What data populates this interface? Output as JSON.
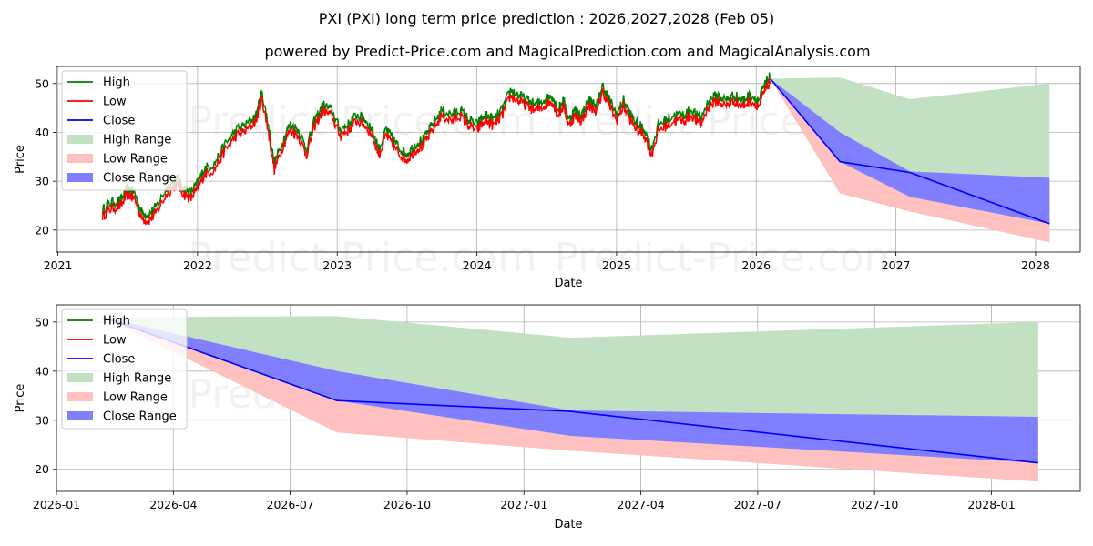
{
  "title": "PXI (PXI) long term price prediction : 2026,2027,2028 (Feb 05)",
  "subtitle": "powered by Predict-Price.com and MagicalPrediction.com and MagicalAnalysis.com",
  "watermark": "Predict-Price.com",
  "colors": {
    "high": "#008000",
    "low": "#ff0000",
    "close": "#0000ff",
    "high_range": "#c2e0c2",
    "low_range": "#ffc0c0",
    "close_range": "#7f7fff"
  },
  "legend": [
    "High",
    "Low",
    "Close",
    "High Range",
    "Low Range",
    "Close Range"
  ],
  "chart_data": [
    {
      "type": "line",
      "title": "PXI (PXI) long term price prediction : 2026,2027,2028 (Feb 05)",
      "xlabel": "Date",
      "ylabel": "Price",
      "xlim": [
        2020.99,
        2028.32
      ],
      "ylim": [
        15.5,
        53.5
      ],
      "xticks": [
        {
          "v": 2021,
          "label": "2021"
        },
        {
          "v": 2022,
          "label": "2022"
        },
        {
          "v": 2023,
          "label": "2023"
        },
        {
          "v": 2024,
          "label": "2024"
        },
        {
          "v": 2025,
          "label": "2025"
        },
        {
          "v": 2026,
          "label": "2026"
        },
        {
          "v": 2027,
          "label": "2027"
        },
        {
          "v": 2028,
          "label": "2028"
        }
      ],
      "yticks": [
        20,
        30,
        40,
        50
      ],
      "history_close": {
        "x": [
          2021.32,
          2021.38,
          2021.45,
          2021.5,
          2021.55,
          2021.6,
          2021.65,
          2021.7,
          2021.78,
          2021.85,
          2021.9,
          2021.95,
          2022.0,
          2022.05,
          2022.12,
          2022.2,
          2022.28,
          2022.35,
          2022.42,
          2022.46,
          2022.5,
          2022.55,
          2022.6,
          2022.66,
          2022.72,
          2022.78,
          2022.84,
          2022.9,
          2022.96,
          2023.02,
          2023.08,
          2023.14,
          2023.2,
          2023.25,
          2023.3,
          2023.35,
          2023.4,
          2023.45,
          2023.5,
          2023.56,
          2023.62,
          2023.68,
          2023.75,
          2023.82,
          2023.88,
          2023.94,
          2024.0,
          2024.06,
          2024.12,
          2024.18,
          2024.24,
          2024.3,
          2024.36,
          2024.42,
          2024.48,
          2024.54,
          2024.58,
          2024.62,
          2024.66,
          2024.7,
          2024.75,
          2024.8,
          2024.86,
          2024.9,
          2024.95,
          2025.0,
          2025.05,
          2025.1,
          2025.15,
          2025.2,
          2025.25,
          2025.3,
          2025.36,
          2025.42,
          2025.48,
          2025.54,
          2025.6,
          2025.66,
          2025.72,
          2025.78,
          2025.84,
          2025.9,
          2025.96,
          2026.02,
          2026.06,
          2026.1
        ],
        "y": [
          23.5,
          25,
          25.5,
          28,
          27,
          23,
          22.5,
          24,
          28,
          30,
          28,
          27,
          29,
          32,
          33,
          37,
          40,
          41,
          43,
          47.5,
          42,
          33,
          37,
          41,
          40,
          36,
          42,
          45,
          44,
          40,
          41,
          43,
          42,
          40,
          36,
          40,
          38,
          36,
          35,
          37,
          38,
          41,
          44,
          43,
          44,
          42,
          41,
          43,
          42,
          44,
          48,
          47,
          46,
          45,
          46,
          47,
          44,
          46,
          42,
          44,
          43,
          46,
          45,
          49,
          46,
          43,
          46,
          43,
          41,
          40,
          36,
          41,
          42,
          43,
          43,
          44,
          42,
          46,
          47,
          46,
          47,
          46,
          47,
          46,
          49,
          51
        ]
      },
      "forecast_dates": [
        2026.1,
        2026.6,
        2027.1,
        2028.1
      ],
      "close_forecast": [
        51,
        34,
        31.8,
        21.3
      ],
      "high_range": {
        "upper": [
          51,
          51.2,
          46.8,
          50
        ],
        "lower": [
          51,
          27.5,
          23.8,
          17.5
        ]
      },
      "low_range": {
        "upper": [
          51,
          34,
          26.8,
          21.3
        ],
        "lower": [
          51,
          27.5,
          23.8,
          17.5
        ]
      },
      "close_range": {
        "upper": [
          51,
          40,
          32,
          30.7
        ],
        "lower": [
          51,
          34,
          26.8,
          21.3
        ]
      }
    },
    {
      "type": "line",
      "xlabel": "Date",
      "ylabel": "Price",
      "xlim": [
        2026.0,
        2028.19
      ],
      "ylim": [
        15.5,
        53.5
      ],
      "xticks": [
        {
          "v": 2026.0,
          "label": "2026-01"
        },
        {
          "v": 2026.25,
          "label": "2026-04"
        },
        {
          "v": 2026.5,
          "label": "2026-07"
        },
        {
          "v": 2026.75,
          "label": "2026-10"
        },
        {
          "v": 2027.0,
          "label": "2027-01"
        },
        {
          "v": 2027.25,
          "label": "2027-04"
        },
        {
          "v": 2027.5,
          "label": "2027-07"
        },
        {
          "v": 2027.75,
          "label": "2027-10"
        },
        {
          "v": 2028.0,
          "label": "2028-01"
        }
      ],
      "yticks": [
        20,
        30,
        40,
        50
      ],
      "forecast_dates": [
        2026.1,
        2026.6,
        2027.1,
        2028.1
      ],
      "close_forecast": [
        51,
        34,
        31.8,
        21.3
      ],
      "high_range": {
        "upper": [
          51,
          51.2,
          46.8,
          50
        ],
        "lower": [
          51,
          27.5,
          23.8,
          17.5
        ]
      },
      "low_range": {
        "upper": [
          51,
          34,
          26.8,
          21.3
        ],
        "lower": [
          51,
          27.5,
          23.8,
          17.5
        ]
      },
      "close_range": {
        "upper": [
          51,
          40,
          32,
          30.7
        ],
        "lower": [
          51,
          34,
          26.8,
          21.3
        ]
      }
    }
  ]
}
